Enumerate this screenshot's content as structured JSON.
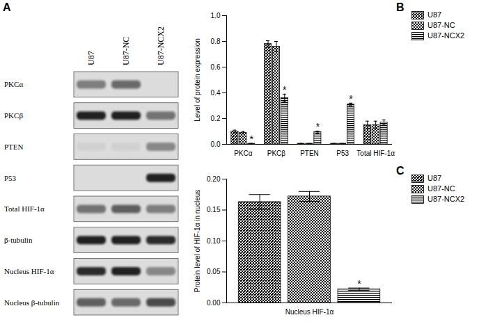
{
  "chart_data": [
    {
      "type": "blot",
      "panel": "A",
      "lanes": [
        "U87",
        "U87-NC",
        "U87-NCX2"
      ],
      "rows": [
        "PKCα",
        "PKCβ",
        "PTEN",
        "P53",
        "Total HIF-1α",
        "β-tubulin",
        "Nucleus HIF-1α",
        "Nucleus β-tubulin"
      ],
      "intensity": [
        [
          0.45,
          0.55,
          0
        ],
        [
          0.9,
          0.9,
          0.5
        ],
        [
          0.05,
          0.05,
          0.4
        ],
        [
          0,
          0,
          0.9
        ],
        [
          0.5,
          0.6,
          0.45
        ],
        [
          0.9,
          0.9,
          0.85
        ],
        [
          0.85,
          0.9,
          0.4
        ],
        [
          0.6,
          0.55,
          0.7
        ]
      ]
    },
    {
      "type": "bar",
      "panel": "B",
      "y_label": "Level of protein expression",
      "categories": [
        "PKCα",
        "PKCβ",
        "PTEN",
        "P53",
        "Total HIF-1α"
      ],
      "series": [
        {
          "name": "U87",
          "color": "#000000",
          "values": [
            0.1,
            0.78,
            0.005,
            0.005,
            0.15
          ],
          "errors": [
            0.01,
            0.025,
            0.002,
            0.002,
            0.03
          ],
          "annotations": [
            null,
            null,
            null,
            null,
            null
          ]
        },
        {
          "name": "U87-NC",
          "color": "#000000",
          "values": [
            0.09,
            0.76,
            0.005,
            0.005,
            0.15
          ],
          "errors": [
            0.01,
            0.04,
            0.002,
            0.002,
            0.03
          ],
          "annotations": [
            null,
            null,
            null,
            null,
            null
          ]
        },
        {
          "name": "U87-NCX2",
          "color": "#000000",
          "values": [
            0.005,
            0.36,
            0.095,
            0.31,
            0.17
          ],
          "errors": [
            0.002,
            0.03,
            0.008,
            0.01,
            0.02
          ],
          "annotations": [
            "*",
            "*",
            "*",
            "*",
            null
          ]
        }
      ],
      "ylim": [
        0,
        1.0
      ],
      "yticks": [
        {
          "value": 0,
          "label": "0.0"
        },
        {
          "value": 0.2,
          "label": "0.2"
        },
        {
          "value": 0.4,
          "label": "0.4"
        },
        {
          "value": 0.6,
          "label": "0.6"
        },
        {
          "value": 0.8,
          "label": "0.8"
        },
        {
          "value": 1.0,
          "label": "1.0"
        }
      ],
      "legend": "right"
    },
    {
      "type": "bar",
      "panel": "C",
      "y_label": "Protein level of HIF-1α in nucleus",
      "categories": [
        "Nucleus HIF-1α"
      ],
      "series": [
        {
          "name": "U87",
          "color": "#000000",
          "values": [
            0.163
          ],
          "errors": [
            0.012
          ],
          "annotations": [
            null
          ]
        },
        {
          "name": "U87-NC",
          "color": "#000000",
          "values": [
            0.172
          ],
          "errors": [
            0.008
          ],
          "annotations": [
            null
          ]
        },
        {
          "name": "U87-NCX2",
          "color": "#000000",
          "values": [
            0.022
          ],
          "errors": [
            0.002
          ],
          "annotations": [
            "*"
          ]
        }
      ],
      "ylim": [
        0,
        0.2
      ],
      "yticks": [
        {
          "value": 0,
          "label": "0.00"
        },
        {
          "value": 0.05,
          "label": "0.05"
        },
        {
          "value": 0.1,
          "label": "0.10"
        },
        {
          "value": 0.15,
          "label": "0.15"
        },
        {
          "value": 0.2,
          "label": "0.20"
        }
      ],
      "legend": "right"
    }
  ]
}
